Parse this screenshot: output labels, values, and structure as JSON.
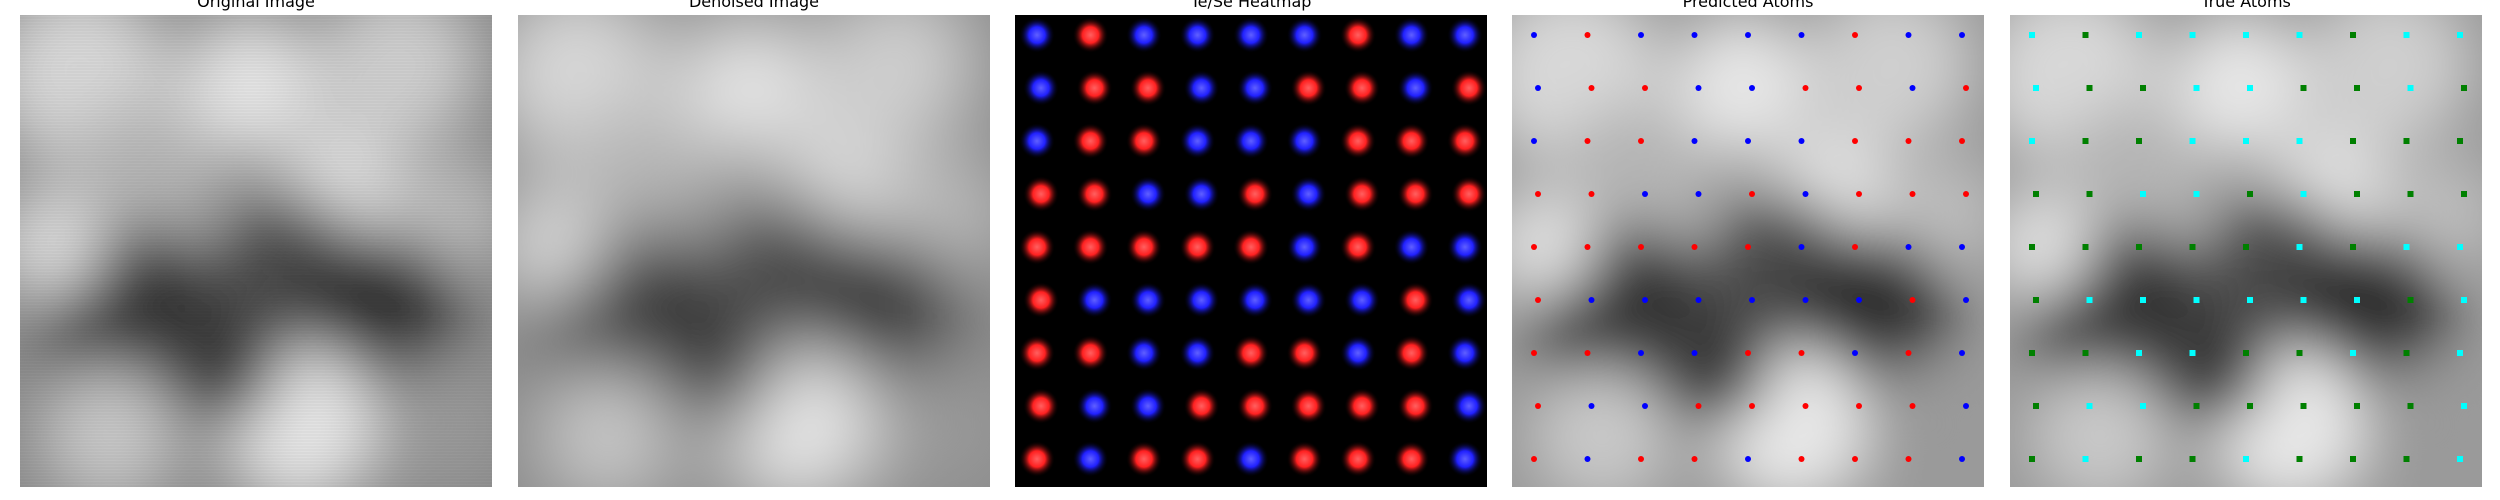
{
  "panels": [
    {
      "id": "original",
      "title": "Original Image"
    },
    {
      "id": "denoised",
      "title": "Denoised Image"
    },
    {
      "id": "heatmap",
      "title": "Te/Se Heatmap"
    },
    {
      "id": "predicted",
      "title": "Predicted Atoms"
    },
    {
      "id": "true",
      "title": "True Atoms"
    }
  ],
  "colors": {
    "te_heatmap": "#ff2020",
    "se_heatmap": "#2020ff",
    "te_marker": "#ff0000",
    "se_marker": "#0000ff",
    "true_te_marker": "#00ffff",
    "true_se_marker": "#008000",
    "heatmap_bg": "#000000"
  },
  "icons": [
    "grayscale-image",
    "heatmap-image",
    "atom-marker"
  ]
}
